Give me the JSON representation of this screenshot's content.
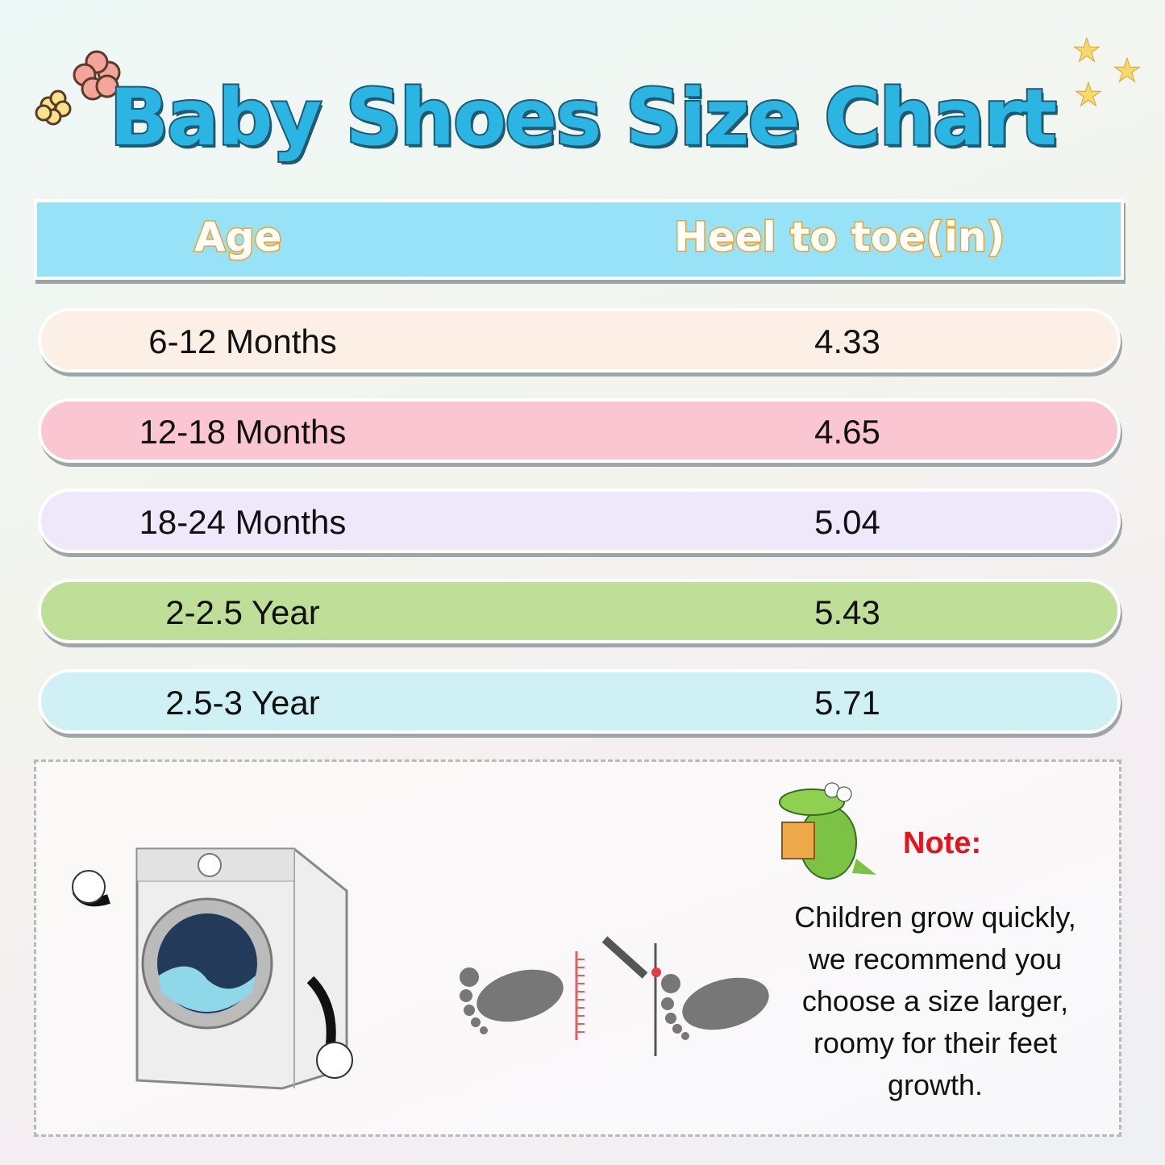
{
  "title": "Baby Shoes Size Chart",
  "header": {
    "age": "Age",
    "length": "Heel to toe(in)"
  },
  "rows": [
    {
      "age": "6-12 Months",
      "length": "4.33",
      "color": "#fcefe6"
    },
    {
      "age": "12-18 Months",
      "length": "4.65",
      "color": "#f9c6d2"
    },
    {
      "age": "18-24 Months",
      "length": "5.04",
      "color": "#efe8fb"
    },
    {
      "age": "2-2.5 Year",
      "length": "5.43",
      "color": "#bfdf98"
    },
    {
      "age": "2.5-3 Year",
      "length": "5.71",
      "color": "#cff1f6"
    }
  ],
  "note": {
    "title": "Note:",
    "text": "Children grow quickly, we recommend you choose a size larger, roomy for their feet growth."
  }
}
